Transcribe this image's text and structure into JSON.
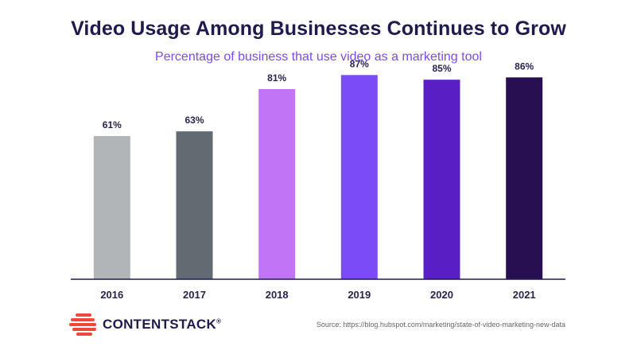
{
  "header": {
    "title": "Video Usage Among Businesses Continues to Grow",
    "subtitle": "Percentage of business that use video as a marketing tool"
  },
  "chart_data": {
    "type": "bar",
    "categories": [
      "2016",
      "2017",
      "2018",
      "2019",
      "2020",
      "2021"
    ],
    "values": [
      61,
      63,
      81,
      87,
      85,
      86
    ],
    "value_labels": [
      "61%",
      "63%",
      "81%",
      "87%",
      "85%",
      "86%"
    ],
    "colors": [
      "#b1b5b8",
      "#616b71",
      "#c174f5",
      "#7b4bf8",
      "#5a1fc4",
      "#280f52"
    ],
    "title": "Video Usage Among Businesses Continues to Grow",
    "subtitle": "Percentage of business that use video as a marketing tool",
    "ylim": [
      0,
      100
    ],
    "grid": false,
    "legend": "none"
  },
  "footer": {
    "logo_text": "CONTENTSTACK",
    "logo_trademark": "®",
    "logo_icon": "contentstack-stripes-icon",
    "source": "Source: https://blog.hubspot.com/marketing/state-of-video-marketing-new-data"
  }
}
